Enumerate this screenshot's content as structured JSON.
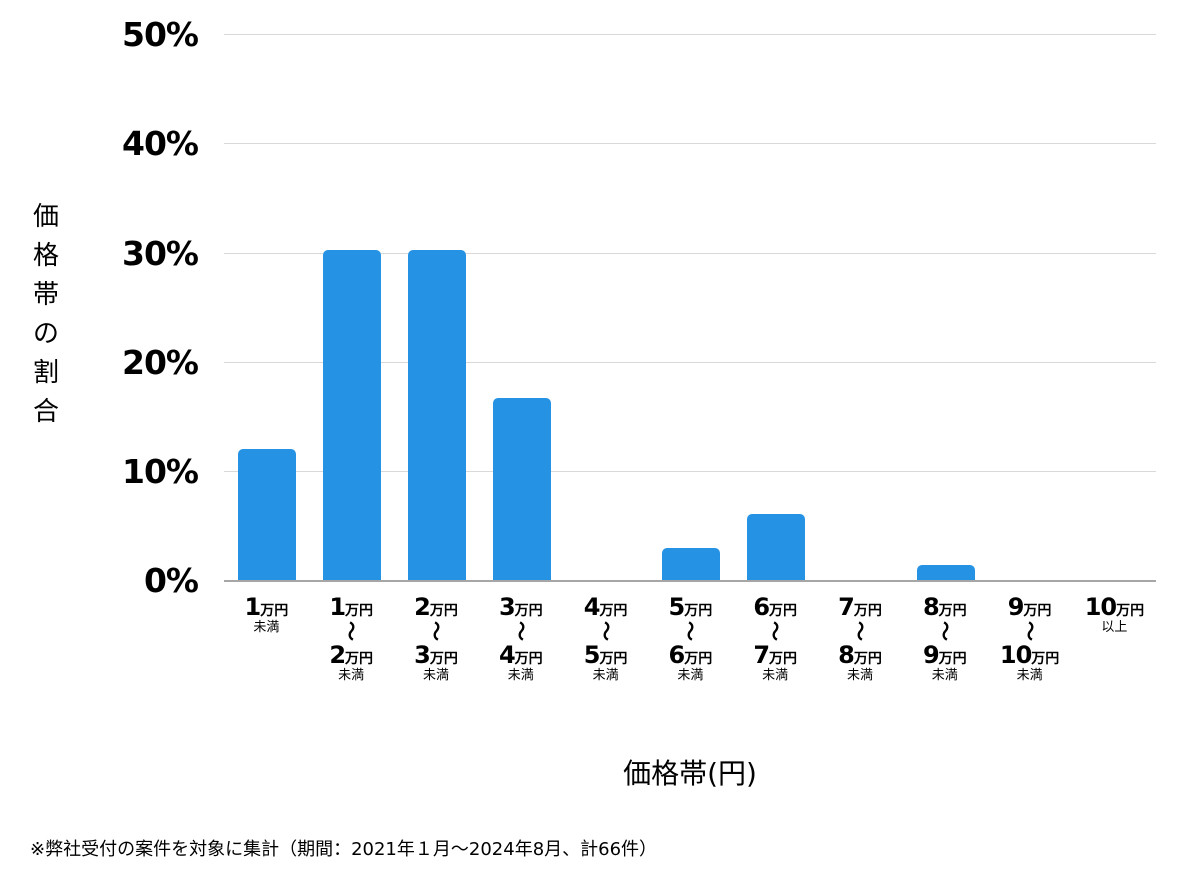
{
  "chart_data": {
    "type": "bar",
    "title": "",
    "xlabel": "価格帯(円)",
    "ylabel": "価格帯の割合",
    "ylim": [
      0,
      50
    ],
    "yticks": [
      "0%",
      "10%",
      "20%",
      "30%",
      "40%",
      "50%"
    ],
    "grid": true,
    "legend": null,
    "color": "#2692e4",
    "categories": [
      "1万円未満",
      "1万円〜2万円未満",
      "2万円〜3万円未満",
      "3万円〜4万円未満",
      "4万円〜5万円未満",
      "5万円〜6万円未満",
      "6万円〜7万円未満",
      "7万円〜8万円未満",
      "8万円〜9万円未満",
      "9万円〜10万円未満",
      "10万円以上"
    ],
    "values": [
      12.1,
      30.3,
      30.3,
      16.7,
      0,
      3.0,
      6.1,
      0,
      1.5,
      0,
      0
    ],
    "unit": "%",
    "annotation": "※弊社受付の案件を対象に集計（期間：2021年１月〜2024年8月、計66件）"
  },
  "axis": {
    "y_title_chars": [
      "価",
      "格",
      "帯",
      "の",
      "割",
      "合"
    ],
    "y_ticks": [
      {
        "label": "50%",
        "value": 50
      },
      {
        "label": "40%",
        "value": 40
      },
      {
        "label": "30%",
        "value": 30
      },
      {
        "label": "20%",
        "value": 20
      },
      {
        "label": "10%",
        "value": 10
      },
      {
        "label": "0%",
        "value": 0
      }
    ],
    "x_title": "価格帯(円)"
  },
  "x_labels": [
    {
      "top_num": "1",
      "top_unit": "万円",
      "range": false,
      "bottom_num": "",
      "bottom_unit": "",
      "suffix": "未満"
    },
    {
      "top_num": "1",
      "top_unit": "万円",
      "range": true,
      "bottom_num": "2",
      "bottom_unit": "万円",
      "suffix": "未満"
    },
    {
      "top_num": "2",
      "top_unit": "万円",
      "range": true,
      "bottom_num": "3",
      "bottom_unit": "万円",
      "suffix": "未満"
    },
    {
      "top_num": "3",
      "top_unit": "万円",
      "range": true,
      "bottom_num": "4",
      "bottom_unit": "万円",
      "suffix": "未満"
    },
    {
      "top_num": "4",
      "top_unit": "万円",
      "range": true,
      "bottom_num": "5",
      "bottom_unit": "万円",
      "suffix": "未満"
    },
    {
      "top_num": "5",
      "top_unit": "万円",
      "range": true,
      "bottom_num": "6",
      "bottom_unit": "万円",
      "suffix": "未満"
    },
    {
      "top_num": "6",
      "top_unit": "万円",
      "range": true,
      "bottom_num": "7",
      "bottom_unit": "万円",
      "suffix": "未満"
    },
    {
      "top_num": "7",
      "top_unit": "万円",
      "range": true,
      "bottom_num": "8",
      "bottom_unit": "万円",
      "suffix": "未満"
    },
    {
      "top_num": "8",
      "top_unit": "万円",
      "range": true,
      "bottom_num": "9",
      "bottom_unit": "万円",
      "suffix": "未満"
    },
    {
      "top_num": "9",
      "top_unit": "万円",
      "range": true,
      "bottom_num": "10",
      "bottom_unit": "万円",
      "suffix": "未満"
    },
    {
      "top_num": "10",
      "top_unit": "万円",
      "range": false,
      "bottom_num": "",
      "bottom_unit": "",
      "suffix": "以上"
    }
  ],
  "range_mark": "〜",
  "footnote": "※弊社受付の案件を対象に集計（期間：2021年１月〜2024年8月、計66件）",
  "colors": {
    "bar": "#2692e4",
    "grid": "#d9d9d9",
    "axis": "#a6a6a6",
    "text": "#000000"
  }
}
